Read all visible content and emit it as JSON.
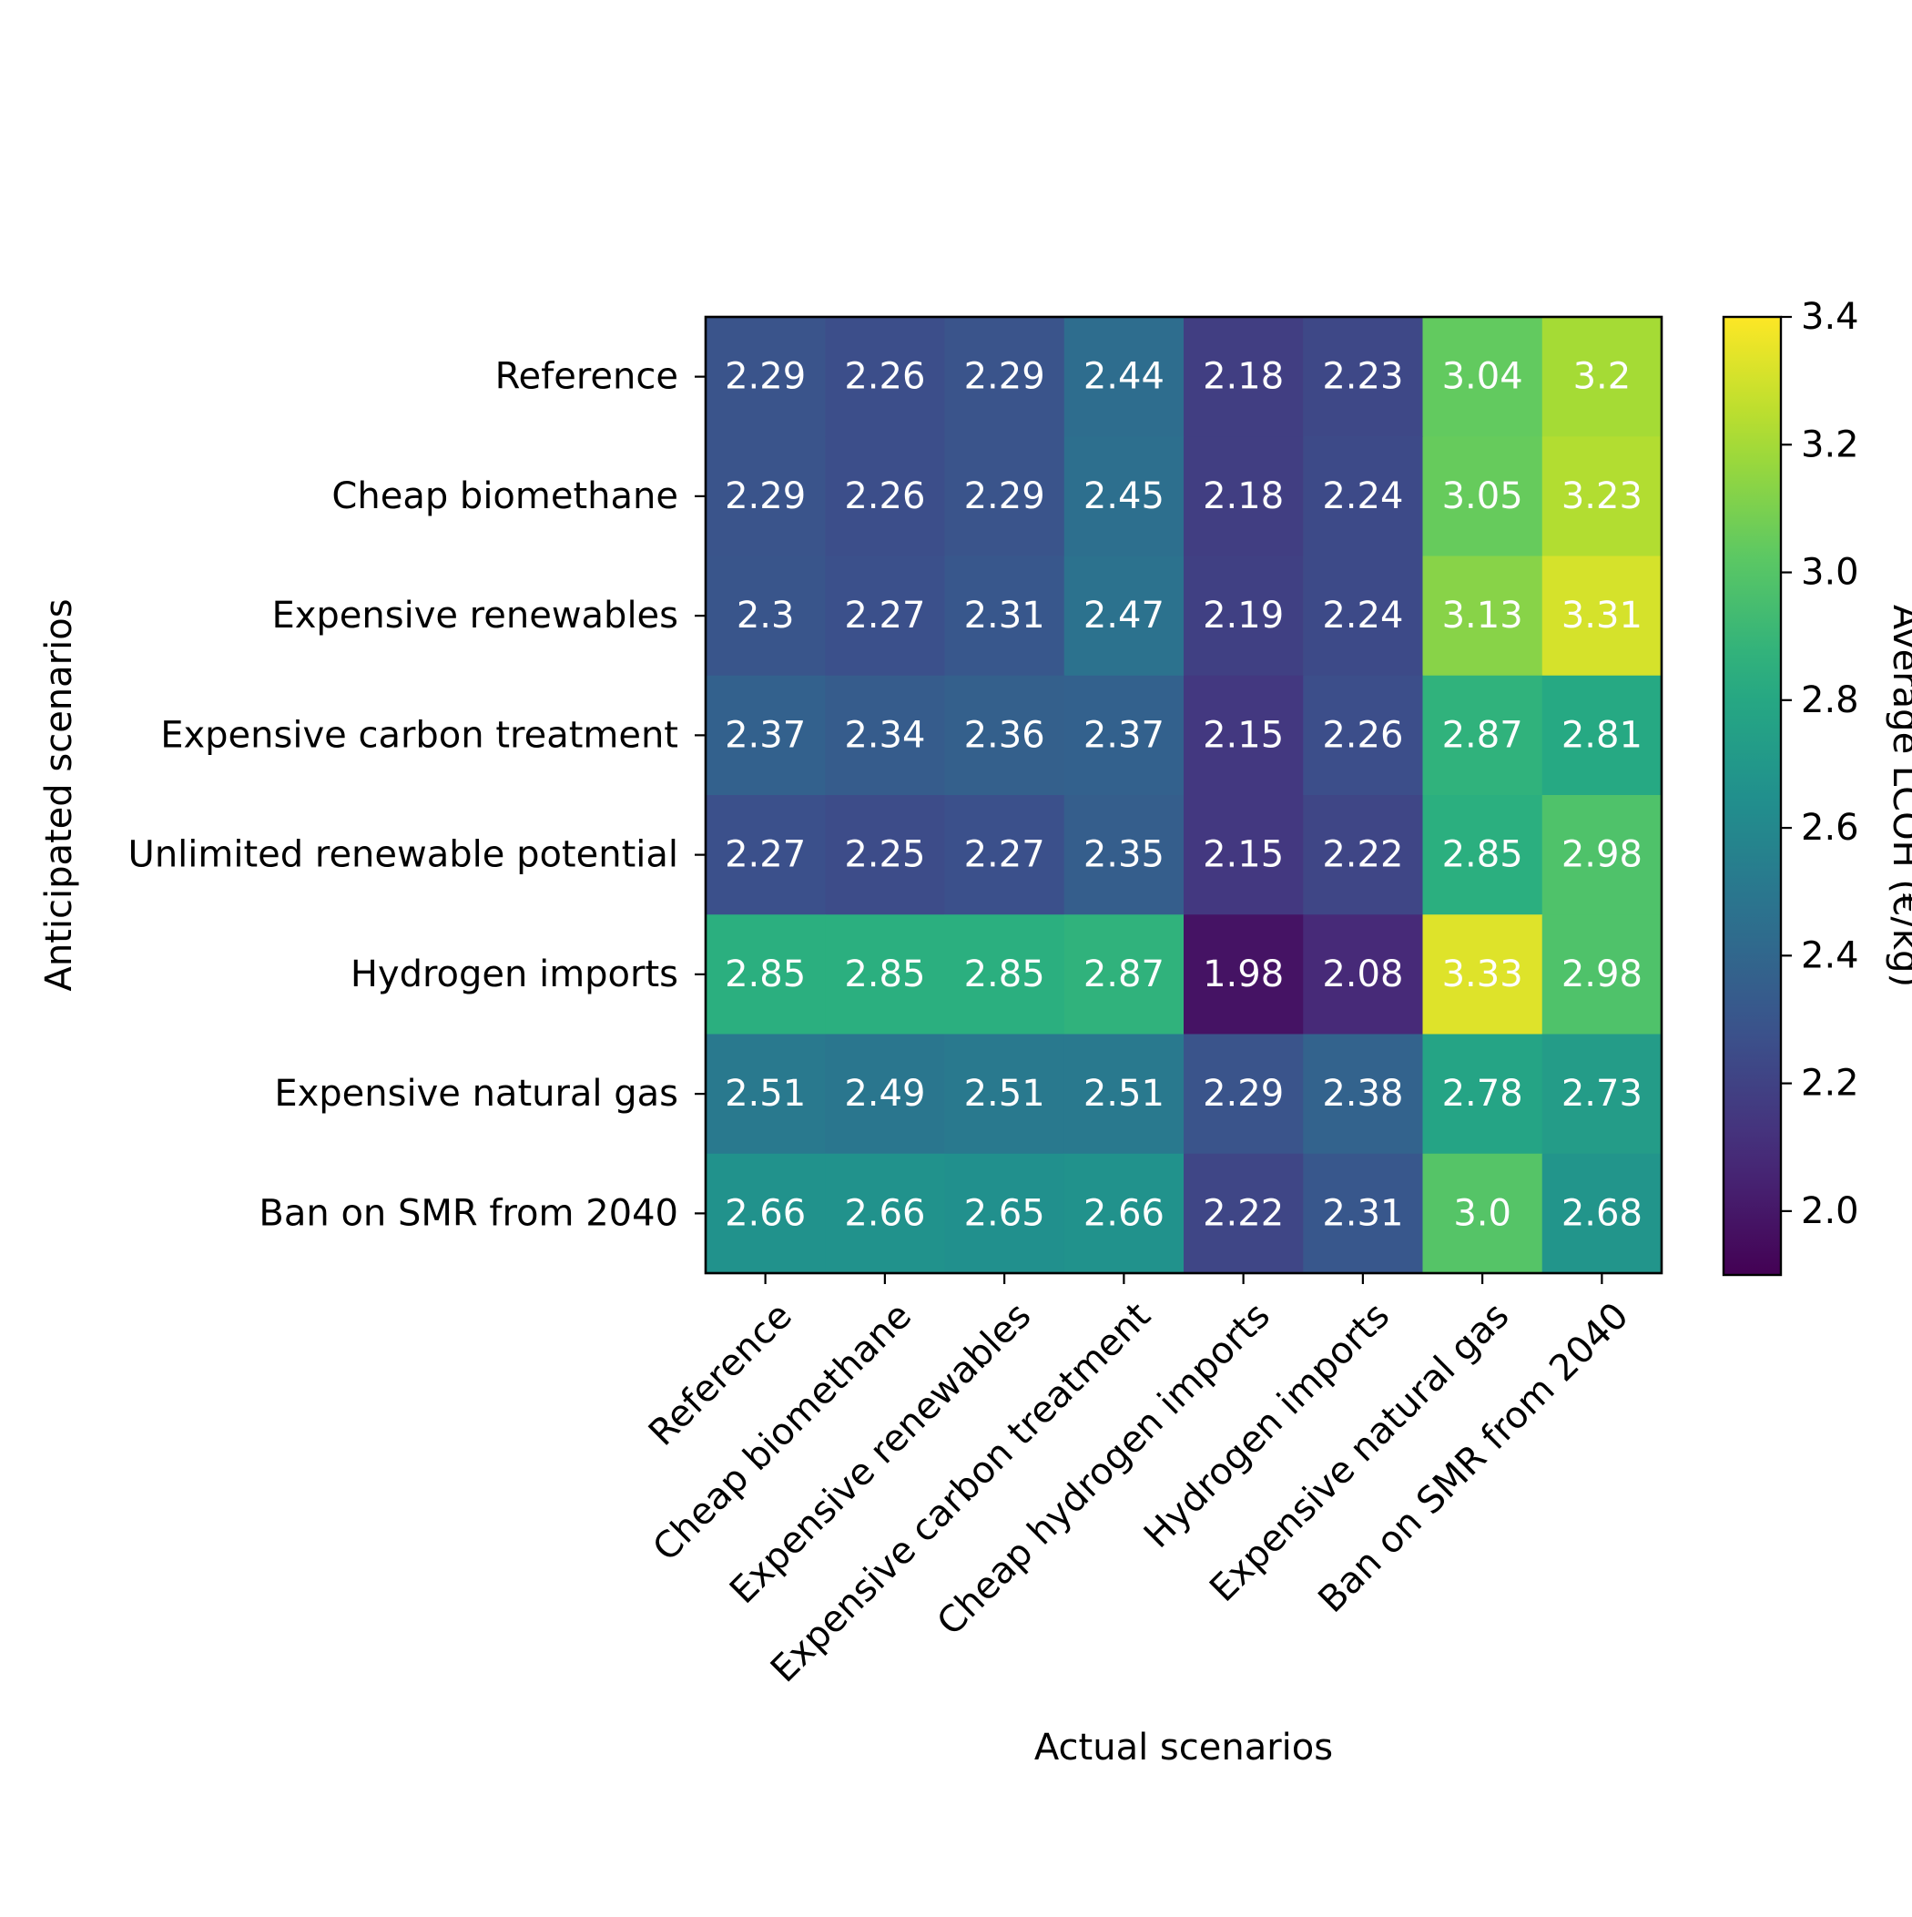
{
  "chart_data": {
    "type": "heatmap",
    "title": "",
    "xlabel": "Actual scenarios",
    "ylabel": "Anticipated scenarios",
    "x_categories": [
      "Reference",
      "Cheap biomethane",
      "Expensive renewables",
      "Expensive carbon treatment",
      "Cheap hydrogen imports",
      "Hydrogen imports",
      "Expensive natural gas",
      "Ban on SMR from 2040"
    ],
    "y_categories": [
      "Reference",
      "Cheap biomethane",
      "Expensive renewables",
      "Expensive carbon treatment",
      "Unlimited renewable potential",
      "Hydrogen imports",
      "Expensive natural gas",
      "Ban on SMR from 2040"
    ],
    "values": [
      [
        2.29,
        2.26,
        2.29,
        2.44,
        2.18,
        2.23,
        3.04,
        3.2
      ],
      [
        2.29,
        2.26,
        2.29,
        2.45,
        2.18,
        2.24,
        3.05,
        3.23
      ],
      [
        2.3,
        2.27,
        2.31,
        2.47,
        2.19,
        2.24,
        3.13,
        3.31
      ],
      [
        2.37,
        2.34,
        2.36,
        2.37,
        2.15,
        2.26,
        2.87,
        2.81
      ],
      [
        2.27,
        2.25,
        2.27,
        2.35,
        2.15,
        2.22,
        2.85,
        2.98
      ],
      [
        2.85,
        2.85,
        2.85,
        2.87,
        1.98,
        2.08,
        3.33,
        2.98
      ],
      [
        2.51,
        2.49,
        2.51,
        2.51,
        2.29,
        2.38,
        2.78,
        2.73
      ],
      [
        2.66,
        2.66,
        2.65,
        2.66,
        2.22,
        2.31,
        3.0,
        2.68
      ]
    ],
    "cell_labels": [
      [
        "2.29",
        "2.26",
        "2.29",
        "2.44",
        "2.18",
        "2.23",
        "3.04",
        "3.2"
      ],
      [
        "2.29",
        "2.26",
        "2.29",
        "2.45",
        "2.18",
        "2.24",
        "3.05",
        "3.23"
      ],
      [
        "2.3",
        "2.27",
        "2.31",
        "2.47",
        "2.19",
        "2.24",
        "3.13",
        "3.31"
      ],
      [
        "2.37",
        "2.34",
        "2.36",
        "2.37",
        "2.15",
        "2.26",
        "2.87",
        "2.81"
      ],
      [
        "2.27",
        "2.25",
        "2.27",
        "2.35",
        "2.15",
        "2.22",
        "2.85",
        "2.98"
      ],
      [
        "2.85",
        "2.85",
        "2.85",
        "2.87",
        "1.98",
        "2.08",
        "3.33",
        "2.98"
      ],
      [
        "2.51",
        "2.49",
        "2.51",
        "2.51",
        "2.29",
        "2.38",
        "2.78",
        "2.73"
      ],
      [
        "2.66",
        "2.66",
        "2.65",
        "2.66",
        "2.22",
        "2.31",
        "3.0",
        "2.68"
      ]
    ],
    "colorbar": {
      "label": "Average LCOH (€/kg)",
      "range": [
        1.9,
        3.4
      ],
      "ticks": [
        2.0,
        2.2,
        2.4,
        2.6,
        2.8,
        3.0,
        3.2,
        3.4
      ],
      "tick_labels": [
        "2.0",
        "2.2",
        "2.4",
        "2.6",
        "2.8",
        "3.0",
        "3.2",
        "3.4"
      ],
      "colormap": "viridis"
    },
    "cell_text_color": "#ffffff",
    "frame_color": "#000000"
  }
}
